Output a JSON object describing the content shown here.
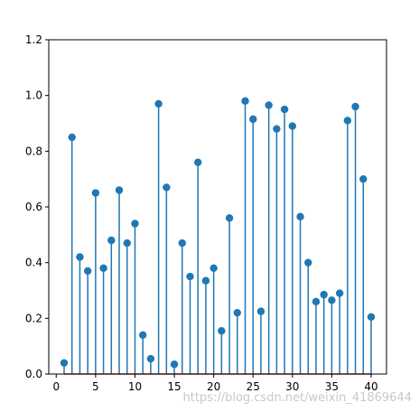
{
  "chart_data": {
    "type": "stem",
    "x": [
      1,
      2,
      3,
      4,
      5,
      6,
      7,
      8,
      9,
      10,
      11,
      12,
      13,
      14,
      15,
      16,
      17,
      18,
      19,
      20,
      21,
      22,
      23,
      24,
      25,
      26,
      27,
      28,
      29,
      30,
      31,
      32,
      33,
      34,
      35,
      36,
      37,
      38,
      39,
      40
    ],
    "y": [
      0.04,
      0.85,
      0.42,
      0.37,
      0.65,
      0.38,
      0.48,
      0.66,
      0.47,
      0.54,
      0.14,
      0.055,
      0.97,
      0.67,
      0.035,
      0.47,
      0.35,
      0.76,
      0.335,
      0.38,
      0.155,
      0.56,
      0.22,
      0.98,
      0.915,
      0.225,
      0.965,
      0.88,
      0.95,
      0.89,
      0.565,
      0.4,
      0.26,
      0.285,
      0.265,
      0.29,
      0.91,
      0.96,
      0.7,
      0.205
    ],
    "xlim": [
      -0.95,
      41.95
    ],
    "ylim": [
      0,
      1.2
    ],
    "xticks": [
      0,
      5,
      10,
      15,
      20,
      25,
      30,
      35,
      40
    ],
    "yticks": [
      0.0,
      0.2,
      0.4,
      0.6,
      0.8,
      1.0,
      1.2
    ],
    "xtick_labels": [
      "0",
      "5",
      "10",
      "15",
      "20",
      "25",
      "30",
      "35",
      "40"
    ],
    "ytick_labels": [
      "0.0",
      "0.2",
      "0.4",
      "0.6",
      "0.8",
      "1.0",
      "1.2"
    ],
    "grid": false,
    "colors": {
      "stem": "#1f77b4",
      "marker": "#1f77b4",
      "baseline": "#d62728"
    }
  },
  "watermark": "https://blog.csdn.net/weixin_41869644"
}
